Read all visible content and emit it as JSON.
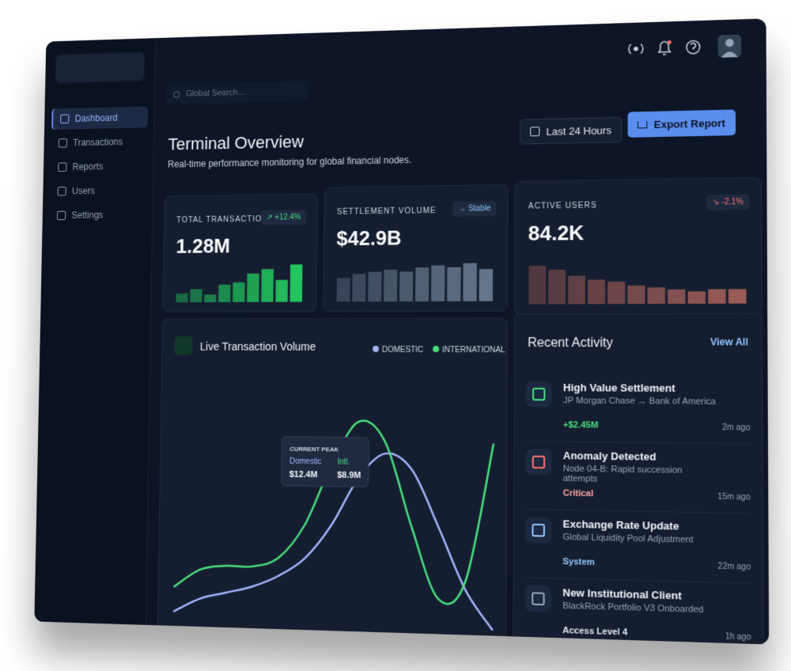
{
  "brand": {
    "search_placeholder": "Global Search..."
  },
  "nav": {
    "items": [
      "Dashboard",
      "Transactions",
      "Reports",
      "Users",
      "Settings"
    ],
    "active": 0
  },
  "header": {
    "title": "Terminal Overview",
    "subtitle": "Real-time performance monitoring for global financial nodes.",
    "range_button": "Last 24 Hours",
    "export_button": "Export Report"
  },
  "stats": [
    {
      "label": "TOTAL TRANSACTIONS",
      "badge": "↗ +12.4%",
      "badge_color": "#4ade80",
      "value": "1.28M",
      "color": "#22c55e",
      "bars": [
        8,
        12,
        7,
        16,
        18,
        26,
        30,
        20,
        34
      ]
    },
    {
      "label": "SETTLEMENT VOLUME",
      "badge": "→ Stable",
      "badge_color": "#93c5fd",
      "value": "$42.9B",
      "color": "#64748b",
      "bars": [
        24,
        28,
        30,
        32,
        30,
        34,
        36,
        34,
        38,
        32
      ]
    },
    {
      "label": "ACTIVE USERS",
      "badge": "↘ -2.1%",
      "badge_color": "#f87171",
      "value": "84.2K",
      "color": "#9a5b57",
      "bars": [
        38,
        34,
        28,
        24,
        22,
        18,
        16,
        14,
        12,
        14,
        14
      ]
    }
  ],
  "chart_data": {
    "type": "line",
    "title": "Live Transaction Volume",
    "series": [
      {
        "name": "DOMESTIC",
        "color": "#a5b4fc",
        "values": [
          6,
          12,
          15,
          18,
          23,
          31,
          46,
          67,
          78,
          71,
          46,
          19,
          2
        ]
      },
      {
        "name": "INTERNATIONAL",
        "color": "#4ade80",
        "values": [
          17,
          25,
          27,
          27,
          31,
          46,
          73,
          92,
          83,
          46,
          15,
          23,
          83
        ]
      }
    ],
    "tooltip": {
      "title": "CURRENT PEAK",
      "labels": [
        "Domestic",
        "Intl."
      ],
      "values": [
        "$12.4M",
        "$8.9M"
      ]
    }
  },
  "activity": {
    "title": "Recent Activity",
    "link": "View All",
    "items": [
      {
        "title": "High Value Settlement",
        "desc": "JP Morgan Chase → Bank of America",
        "tag": "+$2.45M",
        "tag_color": "#4ade80",
        "time": "2m ago",
        "icon_color": "#4ade80"
      },
      {
        "title": "Anomaly Detected",
        "desc": "Node 04-B: Rapid succession attempts",
        "tag": "Critical",
        "tag_color": "#fca5a5",
        "time": "15m ago",
        "icon_color": "#f87171"
      },
      {
        "title": "Exchange Rate Update",
        "desc": "Global Liquidity Pool Adjustment",
        "tag": "System",
        "tag_color": "#93c5fd",
        "time": "22m ago",
        "icon_color": "#93c5fd"
      },
      {
        "title": "New Institutional Client",
        "desc": "BlackRock Portfolio V3 Onboarded",
        "tag": "Access Level 4",
        "tag_color": "#e2e8f0",
        "time": "1h ago",
        "icon_color": "#94a3b8"
      }
    ]
  }
}
